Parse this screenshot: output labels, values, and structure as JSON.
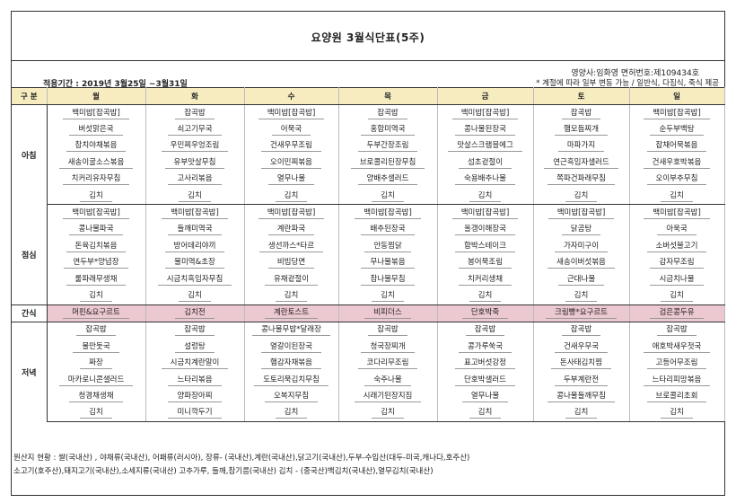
{
  "title": "요양원 3월식단표(5주)",
  "dietitian": "영양사:임화영  면허번호:제109434호",
  "period": "적용기간 : 2019년 3월25일 ~3월31일",
  "note": "* 계절에 따라 일부 변동 가능 / 일반식, 다짐식, 죽식 제공",
  "header": [
    "구 분",
    "월",
    "화",
    "수",
    "목",
    "금",
    "토",
    "일"
  ],
  "meals": [
    {
      "name": "아침",
      "rows": [
        [
          "백미밥[잡곡밥]",
          "잡곡밥",
          "백미밥[잡곡밥]",
          "잡곡밥",
          "백미밥[잡곡밥]",
          "잡곡밥",
          "백미밥[잡곡밥]"
        ],
        [
          "버섯맑은국",
          "쇠고기무국",
          "어묵국",
          "홍합미역국",
          "콩나물된장국",
          "햄모듬찌개",
          "순두부백탕"
        ],
        [
          "참치야채볶음",
          "우민찌우엉조림",
          "건새우무조림",
          "두부간장조림",
          "맛살스크램블에그",
          "마파가지",
          "잡채어묵볶음"
        ],
        [
          "새송이굴소스볶음",
          "유부맛살무침",
          "오이민찌볶음",
          "브로콜리된장무침",
          "섬초겉절이",
          "연근흑임자샐러드",
          "건새우호박볶음"
        ],
        [
          "치커리유자무침",
          "고사리볶음",
          "열무나물",
          "양배추샐러드",
          "숙용배추나물",
          "쪽파건파래무침",
          "오이부추무침"
        ],
        [
          "김치",
          "김치",
          "김치",
          "김치",
          "김치",
          "김치",
          "김치"
        ]
      ]
    },
    {
      "name": "점심",
      "rows": [
        [
          "백미밥[잡곡밥]",
          "백미밥[잡곡밥]",
          "백미밥[잡곡밥]",
          "백미밥[잡곡밥]",
          "백미밥[잡곡밥]",
          "백미밥[잡곡밥]",
          "백미밥[잡곡밥]"
        ],
        [
          "콩나물파국",
          "들깨미역국",
          "계란파국",
          "배추된장국",
          "올갱이해장국",
          "닭곰탕",
          "아욱국"
        ],
        [
          "돈육김치볶음",
          "방어데리야끼",
          "생선까스*타르",
          "안동찜닭",
          "함박스테이크",
          "가자미구이",
          "소버섯불고기"
        ],
        [
          "연두부*양념장",
          "물미역&초장",
          "비빔당면",
          "무나물볶음",
          "봉어묵조림",
          "새송이버섯볶음",
          "감자무조림"
        ],
        [
          "룰파래무생채",
          "시금치흑임자무침",
          "유채겉절이",
          "참나물무침",
          "치커리생채",
          "근대나물",
          "시금치나물"
        ],
        [
          "김치",
          "김치",
          "김치",
          "김치",
          "김치",
          "김치",
          "김치"
        ]
      ]
    },
    {
      "name": "간식",
      "rows": [
        [
          "머핀&요구르트",
          "김치전",
          "계란토스트",
          "비피더스",
          "단호박죽",
          "크림빵*요구르트",
          "검은콩두유"
        ]
      ]
    },
    {
      "name": "저녁",
      "rows": [
        [
          "잡곡밥",
          "잡곡밥",
          "콩나물무밥*달래장",
          "잡곡밥",
          "잡곡밥",
          "잡곡밥",
          "잡곡밥"
        ],
        [
          "물만둣국",
          "설렁탕",
          "열갈이된장국",
          "청국장찌개",
          "콩가루쑥국",
          "건새우무국",
          "애호박새우젓국"
        ],
        [
          "짜장",
          "시금치계란말이",
          "햄감자채볶음",
          "코다리무조림",
          "표고버섯강정",
          "돈사태김치찜",
          "고등어무조림"
        ],
        [
          "마카로니콘샐러드",
          "느타리볶음",
          "도토리묵김치무침",
          "숙주나물",
          "단호박샐러드",
          "두부계란전",
          "느타리피망볶음"
        ],
        [
          "청경채생채",
          "양파장아찌",
          "오복지무침",
          "시래기된장지짐",
          "열무나물",
          "콩나물들깨무침",
          "브로콜리초회"
        ],
        [
          "김치",
          "미니깍두기",
          "김치",
          "김치",
          "김치",
          "김치",
          "김치"
        ]
      ]
    }
  ],
  "origin_lines": [
    "원산지 현황 : 쌀(국내산) , 야채류(국내산), 어패류(러시아), 장류- (국내산),계란(국내산),닭고기(국내산),두부-수입산(대두-미국,캐나다,호주산)",
    "소고기(호주산),돼지고기(국내산),소세지류(국내산) 고추가루, 들깨,참기름(국내산) 김치 - (중국산)백김치(국내산),열무김치(국내산)"
  ]
}
